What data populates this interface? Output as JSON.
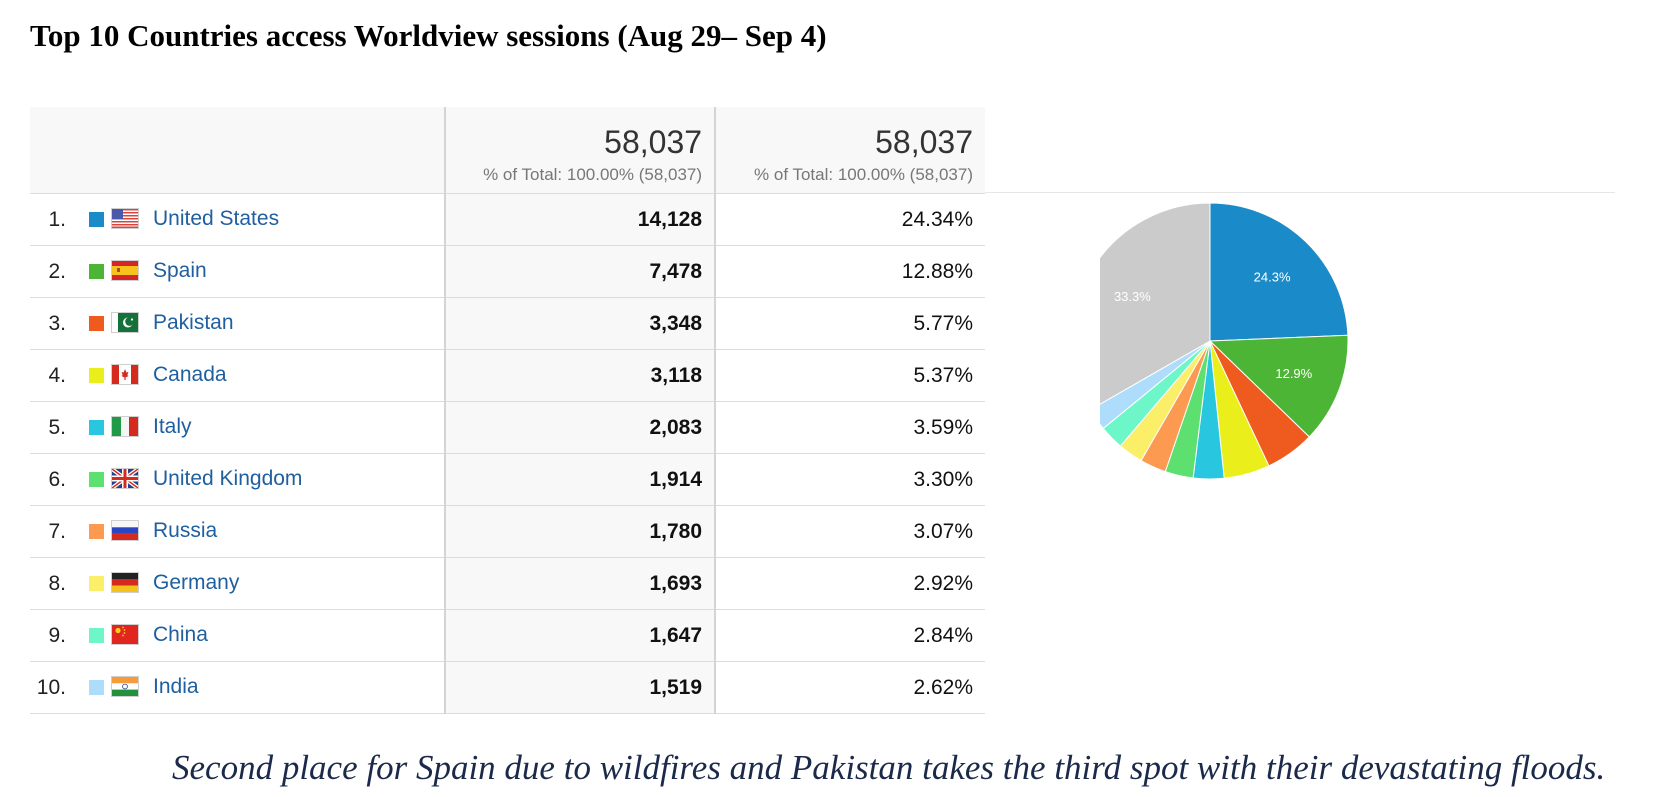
{
  "title": "Top 10 Countries access Worldview sessions (Aug 29– Sep 4)",
  "totals": {
    "sessions_value": "58,037",
    "sessions_sub": "% of Total: 100.00% (58,037)",
    "percent_value": "58,037",
    "percent_sub": "% of Total: 100.00% (58,037)"
  },
  "rows": [
    {
      "rank": "1.",
      "country": "United States",
      "flag": "us-flag-icon",
      "color": "#1a8bc8",
      "sessions": "14,128",
      "percent": "24.34%"
    },
    {
      "rank": "2.",
      "country": "Spain",
      "flag": "spain-flag-icon",
      "color": "#4cb535",
      "sessions": "7,478",
      "percent": "12.88%"
    },
    {
      "rank": "3.",
      "country": "Pakistan",
      "flag": "pakistan-flag-icon",
      "color": "#ef5a1f",
      "sessions": "3,348",
      "percent": "5.77%"
    },
    {
      "rank": "4.",
      "country": "Canada",
      "flag": "canada-flag-icon",
      "color": "#eaef1b",
      "sessions": "3,118",
      "percent": "5.37%"
    },
    {
      "rank": "5.",
      "country": "Italy",
      "flag": "italy-flag-icon",
      "color": "#29c6e0",
      "sessions": "2,083",
      "percent": "3.59%"
    },
    {
      "rank": "6.",
      "country": "United Kingdom",
      "flag": "uk-flag-icon",
      "color": "#5de06f",
      "sessions": "1,914",
      "percent": "3.30%"
    },
    {
      "rank": "7.",
      "country": "Russia",
      "flag": "russia-flag-icon",
      "color": "#fb9a50",
      "sessions": "1,780",
      "percent": "3.07%"
    },
    {
      "rank": "8.",
      "country": "Germany",
      "flag": "germany-flag-icon",
      "color": "#fbef6a",
      "sessions": "1,693",
      "percent": "2.92%"
    },
    {
      "rank": "9.",
      "country": "China",
      "flag": "china-flag-icon",
      "color": "#6df7c8",
      "sessions": "1,647",
      "percent": "2.84%"
    },
    {
      "rank": "10.",
      "country": "India",
      "flag": "india-flag-icon",
      "color": "#aedcfb",
      "sessions": "1,519",
      "percent": "2.62%"
    }
  ],
  "chart_data": {
    "type": "pie",
    "categories": [
      "United States",
      "Spain",
      "Pakistan",
      "Canada",
      "Italy",
      "United Kingdom",
      "Russia",
      "Germany",
      "China",
      "India",
      "Other"
    ],
    "values": [
      24.34,
      12.88,
      5.77,
      5.37,
      3.59,
      3.3,
      3.07,
      2.92,
      2.84,
      2.62,
      33.3
    ],
    "colors": [
      "#1a8bc8",
      "#4cb535",
      "#ef5a1f",
      "#eaef1b",
      "#29c6e0",
      "#5de06f",
      "#fb9a50",
      "#fbef6a",
      "#6df7c8",
      "#aedcfb",
      "#cbcbcb"
    ],
    "slice_labels": [
      "24.3%",
      "12.9%",
      "",
      "",
      "",
      "",
      "",
      "",
      "",
      "",
      "33.3%"
    ],
    "start": "12 o'clock, clockwise"
  },
  "caption": "Second place for Spain due to wildfires and Pakistan takes the third spot with their devastating floods."
}
